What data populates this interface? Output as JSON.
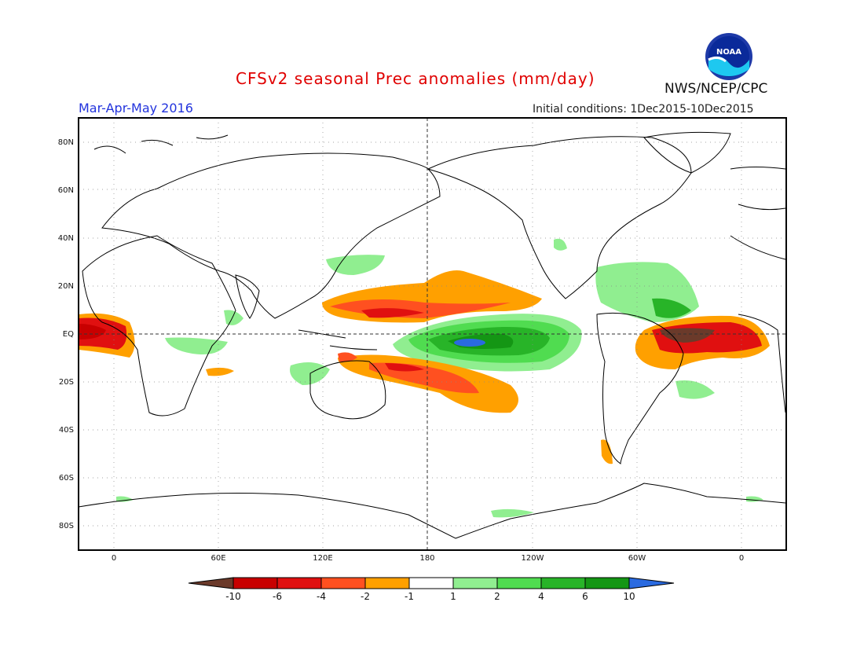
{
  "header": {
    "title": "CFSv2 seasonal Prec anomalies (mm/day)",
    "season": "Mar-Apr-May 2016",
    "initial_conditions": "Initial conditions: 1Dec2015-10Dec2015",
    "organization": "NWS/NCEP/CPC",
    "logo_text": "NOAA"
  },
  "map": {
    "lat_ticks": [
      "80N",
      "60N",
      "40N",
      "20N",
      "EQ",
      "20S",
      "40S",
      "60S",
      "80S"
    ],
    "lon_ticks": [
      "0",
      "60E",
      "120E",
      "180",
      "120W",
      "60W",
      "0"
    ]
  },
  "colorbar": {
    "labels": [
      "-10",
      "-6",
      "-4",
      "-2",
      "-1",
      "1",
      "2",
      "4",
      "6",
      "10"
    ],
    "colors": [
      "#6b3a2a",
      "#c80000",
      "#e01010",
      "#ff5020",
      "#ffa000",
      "#ffffff",
      "#90ee90",
      "#50dc50",
      "#28b428",
      "#149614",
      "#2a6ae0"
    ]
  }
}
